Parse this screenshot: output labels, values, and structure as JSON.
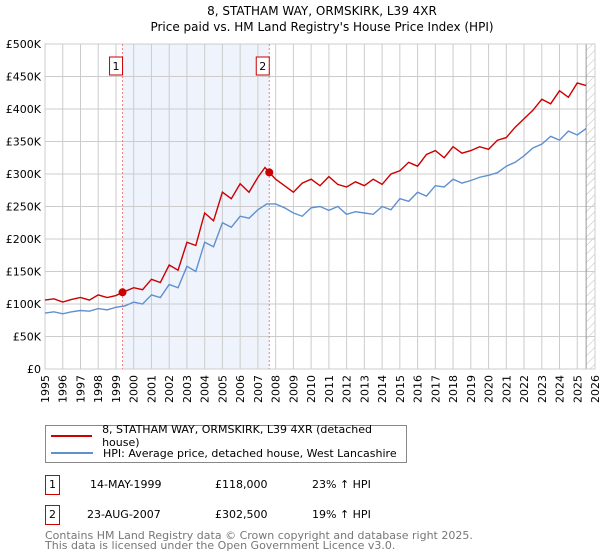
{
  "chart_data": {
    "type": "line",
    "title": "8, STATHAM WAY, ORMSKIRK, L39 4XR",
    "subtitle": "Price paid vs. HM Land Registry's House Price Index (HPI)",
    "xlim": [
      1995,
      2026
    ],
    "ylim": [
      0,
      500000
    ],
    "grid": true,
    "x_ticks": [
      "1995",
      "1996",
      "1997",
      "1998",
      "1999",
      "2000",
      "2001",
      "2002",
      "2003",
      "2004",
      "2005",
      "2006",
      "2007",
      "2008",
      "2009",
      "2010",
      "2011",
      "2012",
      "2013",
      "2014",
      "2015",
      "2016",
      "2017",
      "2018",
      "2019",
      "2020",
      "2021",
      "2022",
      "2023",
      "2024",
      "2025",
      "2026"
    ],
    "y_ticks": [
      {
        "v": 0,
        "label": "£0"
      },
      {
        "v": 50000,
        "label": "£50K"
      },
      {
        "v": 100000,
        "label": "£100K"
      },
      {
        "v": 150000,
        "label": "£150K"
      },
      {
        "v": 200000,
        "label": "£200K"
      },
      {
        "v": 250000,
        "label": "£250K"
      },
      {
        "v": 300000,
        "label": "£300K"
      },
      {
        "v": 350000,
        "label": "£350K"
      },
      {
        "v": 400000,
        "label": "£400K"
      },
      {
        "v": 450000,
        "label": "£450K"
      },
      {
        "v": 500000,
        "label": "£500K"
      }
    ],
    "series": [
      {
        "name": "8, STATHAM WAY, ORMSKIRK, L39 4XR (detached house)",
        "color": "#cc0000",
        "x": [
          1995,
          1995.5,
          1996,
          1996.5,
          1997,
          1997.5,
          1998,
          1998.5,
          1999,
          1999.37,
          2000,
          2000.5,
          2001,
          2001.5,
          2002,
          2002.5,
          2003,
          2003.5,
          2004,
          2004.5,
          2005,
          2005.5,
          2006,
          2006.5,
          2007,
          2007.4,
          2007.64,
          2008,
          2008.5,
          2009,
          2009.5,
          2010,
          2010.5,
          2011,
          2011.5,
          2012,
          2012.5,
          2013,
          2013.5,
          2014,
          2014.5,
          2015,
          2015.5,
          2016,
          2016.5,
          2017,
          2017.5,
          2018,
          2018.5,
          2019,
          2019.5,
          2020,
          2020.5,
          2021,
          2021.5,
          2022,
          2022.5,
          2023,
          2023.5,
          2024,
          2024.5,
          2025,
          2025.5
        ],
        "y": [
          106000,
          108000,
          103000,
          107000,
          110000,
          106000,
          114000,
          110000,
          113000,
          118000,
          125000,
          122000,
          138000,
          133000,
          160000,
          152000,
          195000,
          190000,
          240000,
          228000,
          272000,
          262000,
          285000,
          272000,
          295000,
          310000,
          302500,
          292000,
          282000,
          272000,
          286000,
          292000,
          282000,
          296000,
          284000,
          280000,
          288000,
          282000,
          292000,
          284000,
          300000,
          305000,
          318000,
          312000,
          330000,
          336000,
          325000,
          342000,
          332000,
          336000,
          342000,
          338000,
          352000,
          356000,
          372000,
          385000,
          398000,
          415000,
          408000,
          428000,
          418000,
          440000,
          436000
        ]
      },
      {
        "name": "HPI: Average price, detached house, West Lancashire",
        "color": "#6090d0",
        "x": [
          1995,
          1995.5,
          1996,
          1996.5,
          1997,
          1997.5,
          1998,
          1998.5,
          1999,
          1999.5,
          2000,
          2000.5,
          2001,
          2001.5,
          2002,
          2002.5,
          2003,
          2003.5,
          2004,
          2004.5,
          2005,
          2005.5,
          2006,
          2006.5,
          2007,
          2007.5,
          2008,
          2008.5,
          2009,
          2009.5,
          2010,
          2010.5,
          2011,
          2011.5,
          2012,
          2012.5,
          2013,
          2013.5,
          2014,
          2014.5,
          2015,
          2015.5,
          2016,
          2016.5,
          2017,
          2017.5,
          2018,
          2018.5,
          2019,
          2019.5,
          2020,
          2020.5,
          2021,
          2021.5,
          2022,
          2022.5,
          2023,
          2023.5,
          2024,
          2024.5,
          2025,
          2025.5
        ],
        "y": [
          86000,
          88000,
          85000,
          88000,
          90000,
          89000,
          93000,
          91000,
          95000,
          97000,
          103000,
          100000,
          114000,
          110000,
          130000,
          125000,
          158000,
          150000,
          195000,
          188000,
          225000,
          218000,
          235000,
          232000,
          245000,
          254000,
          254000,
          248000,
          240000,
          235000,
          248000,
          250000,
          244000,
          250000,
          238000,
          242000,
          240000,
          238000,
          250000,
          245000,
          262000,
          258000,
          272000,
          266000,
          282000,
          280000,
          292000,
          286000,
          290000,
          295000,
          298000,
          302000,
          312000,
          318000,
          328000,
          340000,
          346000,
          358000,
          352000,
          366000,
          360000,
          370000
        ]
      }
    ],
    "sales": [
      {
        "id": "1",
        "x": 1999.37,
        "y": 118000,
        "date": "14-MAY-1999",
        "price": "£118,000",
        "hpi": "23% ↑ HPI"
      },
      {
        "id": "2",
        "x": 2007.64,
        "y": 302500,
        "date": "23-AUG-2007",
        "price": "£302,500",
        "hpi": "19% ↑ HPI"
      }
    ],
    "shade_color": "#eef3fc",
    "forecast_from": 2025.5
  },
  "legend": {
    "red": "8, STATHAM WAY, ORMSKIRK, L39 4XR (detached house)",
    "blue": "HPI: Average price, detached house, West Lancashire"
  },
  "footer": {
    "line1": "Contains HM Land Registry data © Crown copyright and database right 2025.",
    "line2": "This data is licensed under the Open Government Licence v3.0."
  }
}
